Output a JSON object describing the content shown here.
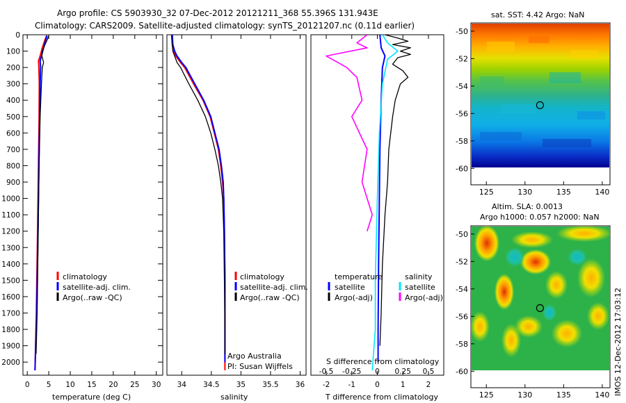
{
  "header": {
    "title_line1": "Argo profile: CS 5903930_32 07-Dec-2012 20121211_368 55.396S 131.943E",
    "title_line2": "Climatology: CARS2009. Satellite-adjusted climatology: synTS_20121207.nc (0.11d earlier)"
  },
  "colors": {
    "climatology": "#ff0000",
    "satellite": "#0000ff",
    "argo": "#000000",
    "salinity_satellite": "#00e5ff",
    "salinity_argo": "#ff00ff"
  },
  "chart_data": [
    {
      "type": "line",
      "id": "temperature",
      "xlabel": "temperature (deg C)",
      "xlim": [
        -1,
        31.5
      ],
      "xticks": [
        0,
        5,
        10,
        15,
        20,
        25,
        30
      ],
      "ylim": [
        2080,
        0
      ],
      "yticks": [
        0,
        100,
        200,
        300,
        400,
        500,
        600,
        700,
        800,
        900,
        1000,
        1100,
        1200,
        1300,
        1400,
        1500,
        1600,
        1700,
        1800,
        1900,
        2000
      ],
      "legend": [
        "climatology",
        "satellite-adj. clim.",
        "Argo(..raw -QC)"
      ],
      "series": [
        {
          "name": "climatology",
          "color": "#ff0000",
          "width": 2,
          "points": [
            [
              4.5,
              5
            ],
            [
              4.0,
              40
            ],
            [
              3.5,
              80
            ],
            [
              3.0,
              130
            ],
            [
              2.6,
              160
            ],
            [
              2.7,
              200
            ],
            [
              2.8,
              300
            ],
            [
              2.75,
              500
            ],
            [
              2.6,
              800
            ],
            [
              2.4,
              1200
            ],
            [
              2.1,
              1700
            ],
            [
              1.8,
              2050
            ]
          ]
        },
        {
          "name": "satellite-adj. clim.",
          "color": "#0000ff",
          "width": 2,
          "points": [
            [
              4.6,
              5
            ],
            [
              4.2,
              40
            ],
            [
              3.8,
              80
            ],
            [
              3.3,
              130
            ],
            [
              3.0,
              160
            ],
            [
              3.1,
              200
            ],
            [
              3.0,
              300
            ],
            [
              2.9,
              500
            ],
            [
              2.7,
              800
            ],
            [
              2.5,
              1200
            ],
            [
              2.2,
              1700
            ],
            [
              1.8,
              2050
            ]
          ]
        },
        {
          "name": "Argo(..raw -QC)",
          "color": "#000000",
          "width": 1.3,
          "points": [
            [
              5.0,
              5
            ],
            [
              4.8,
              20
            ],
            [
              4.3,
              50
            ],
            [
              3.8,
              80
            ],
            [
              3.5,
              100
            ],
            [
              3.4,
              130
            ],
            [
              3.8,
              170
            ],
            [
              3.5,
              200
            ],
            [
              3.3,
              300
            ],
            [
              3.0,
              500
            ],
            [
              2.75,
              800
            ],
            [
              2.55,
              1200
            ],
            [
              2.3,
              1700
            ],
            [
              2.05,
              1950
            ]
          ]
        }
      ]
    },
    {
      "type": "line",
      "id": "salinity",
      "xlabel": "salinity",
      "xlim": [
        33.75,
        36.1
      ],
      "xticks": [
        34,
        34.5,
        35,
        35.5,
        36
      ],
      "ylim": [
        2080,
        0
      ],
      "legend": [
        "climatology",
        "satellite-adj. clim.",
        "Argo(..raw -QC)"
      ],
      "annotation": [
        "Argo Australia",
        "PI: Susan Wijffels"
      ],
      "series": [
        {
          "name": "climatology",
          "color": "#ff0000",
          "width": 2,
          "points": [
            [
              33.83,
              0
            ],
            [
              33.84,
              60
            ],
            [
              33.86,
              100
            ],
            [
              33.9,
              130
            ],
            [
              33.98,
              170
            ],
            [
              34.05,
              200
            ],
            [
              34.2,
              300
            ],
            [
              34.36,
              400
            ],
            [
              34.48,
              500
            ],
            [
              34.55,
              600
            ],
            [
              34.62,
              700
            ],
            [
              34.66,
              800
            ],
            [
              34.69,
              900
            ],
            [
              34.71,
              1000
            ],
            [
              34.72,
              1200
            ],
            [
              34.73,
              1500
            ],
            [
              34.73,
              1800
            ],
            [
              34.73,
              2050
            ]
          ]
        },
        {
          "name": "satellite-adj. clim.",
          "color": "#0000ff",
          "width": 2,
          "points": [
            [
              33.84,
              0
            ],
            [
              33.85,
              60
            ],
            [
              33.88,
              100
            ],
            [
              33.92,
              130
            ],
            [
              34.0,
              170
            ],
            [
              34.07,
              200
            ],
            [
              34.22,
              300
            ],
            [
              34.37,
              400
            ],
            [
              34.49,
              500
            ],
            [
              34.56,
              600
            ],
            [
              34.63,
              700
            ],
            [
              34.67,
              800
            ],
            [
              34.7,
              900
            ],
            [
              34.71,
              1000
            ],
            [
              34.72,
              1200
            ],
            [
              34.73,
              1500
            ],
            [
              34.73,
              1800
            ],
            [
              34.73,
              2000
            ]
          ]
        },
        {
          "name": "Argo(..raw -QC)",
          "color": "#000000",
          "width": 1.3,
          "points": [
            [
              33.83,
              0
            ],
            [
              33.84,
              60
            ],
            [
              33.85,
              100
            ],
            [
              33.88,
              130
            ],
            [
              33.92,
              170
            ],
            [
              33.98,
              200
            ],
            [
              34.12,
              300
            ],
            [
              34.27,
              400
            ],
            [
              34.4,
              500
            ],
            [
              34.49,
              600
            ],
            [
              34.56,
              700
            ],
            [
              34.62,
              800
            ],
            [
              34.66,
              900
            ],
            [
              34.69,
              1000
            ],
            [
              34.71,
              1200
            ],
            [
              34.72,
              1500
            ],
            [
              34.73,
              1800
            ],
            [
              34.73,
              1950
            ]
          ]
        }
      ]
    },
    {
      "type": "line",
      "id": "difference",
      "xlabel": "T difference from climatology",
      "xlim": [
        -2.6,
        2.6
      ],
      "xticks": [
        -2,
        -1,
        0,
        1,
        2
      ],
      "top_xlabel": "S difference from climatology",
      "top_xticks": [
        -0.5,
        -0.25,
        0,
        0.25,
        0.5
      ],
      "ylim": [
        2080,
        0
      ],
      "legend_temperature": {
        "title": "temperature",
        "items": [
          "satellite",
          "Argo(-adj)"
        ]
      },
      "legend_salinity": {
        "title": "salinity",
        "items": [
          "satellite",
          "Argo(-adj)"
        ]
      },
      "series": [
        {
          "name": "temperature satellite",
          "color": "#0000ff",
          "width": 2,
          "points": [
            [
              0.1,
              0
            ],
            [
              0.15,
              80
            ],
            [
              0.3,
              130
            ],
            [
              0.2,
              200
            ],
            [
              0.15,
              400
            ],
            [
              0.1,
              700
            ],
            [
              0.08,
              1000
            ],
            [
              0.05,
              1400
            ],
            [
              0.03,
              1800
            ],
            [
              0.03,
              2000
            ]
          ]
        },
        {
          "name": "temperature Argo(-adj)",
          "color": "#000000",
          "width": 1.3,
          "points": [
            [
              0.3,
              0
            ],
            [
              0.8,
              20
            ],
            [
              1.2,
              40
            ],
            [
              0.6,
              60
            ],
            [
              1.3,
              80
            ],
            [
              0.9,
              100
            ],
            [
              1.3,
              120
            ],
            [
              0.8,
              140
            ],
            [
              0.6,
              180
            ],
            [
              1.0,
              220
            ],
            [
              1.2,
              260
            ],
            [
              0.9,
              300
            ],
            [
              0.7,
              400
            ],
            [
              0.6,
              500
            ],
            [
              0.45,
              700
            ],
            [
              0.4,
              900
            ],
            [
              0.3,
              1100
            ],
            [
              0.2,
              1400
            ],
            [
              0.15,
              1700
            ],
            [
              0.1,
              1900
            ]
          ]
        },
        {
          "name": "salinity satellite",
          "color": "#00e5ff",
          "width": 1.6,
          "points": [
            [
              0.05,
              0
            ],
            [
              0.1,
              50
            ],
            [
              0.2,
              100
            ],
            [
              0.1,
              150
            ],
            [
              0.05,
              300
            ],
            [
              0.02,
              600
            ],
            [
              0.0,
              1000
            ],
            [
              -0.02,
              1500
            ],
            [
              -0.02,
              1800
            ],
            [
              -0.05,
              2050
            ]
          ]
        },
        {
          "name": "salinity Argo(-adj)",
          "color": "#ff00ff",
          "width": 1.6,
          "points": [
            [
              -0.1,
              0
            ],
            [
              -0.2,
              50
            ],
            [
              -0.1,
              80
            ],
            [
              -0.5,
              130
            ],
            [
              -0.3,
              200
            ],
            [
              -0.2,
              260
            ],
            [
              -0.15,
              400
            ],
            [
              -0.25,
              500
            ],
            [
              -0.1,
              700
            ],
            [
              -0.15,
              900
            ],
            [
              -0.05,
              1100
            ],
            [
              -0.1,
              1200
            ]
          ]
        }
      ]
    },
    {
      "type": "heatmap",
      "id": "sst_map",
      "title": "sat. SST: 4.42  Argo: NaN",
      "xlim": [
        123,
        141
      ],
      "ylim": [
        -61.2,
        -49.4
      ],
      "xticks": [
        125,
        130,
        135,
        140
      ],
      "yticks": [
        -50,
        -52,
        -54,
        -56,
        -58,
        -60
      ],
      "argo_position": [
        131.943,
        -55.396
      ]
    },
    {
      "type": "heatmap",
      "id": "sla_map",
      "title_line1": "Altim. SLA: 0.0013",
      "title_line2": "Argo h1000: 0.057  h2000: NaN",
      "xlim": [
        123,
        141
      ],
      "ylim": [
        -61.2,
        -49.4
      ],
      "xticks": [
        125,
        130,
        135,
        140
      ],
      "yticks": [
        -50,
        -52,
        -54,
        -56,
        -58,
        -60
      ],
      "argo_position": [
        131.943,
        -55.396
      ]
    }
  ],
  "footer": {
    "side_label": "IMOS 12-Dec-2012 17:03:12"
  }
}
